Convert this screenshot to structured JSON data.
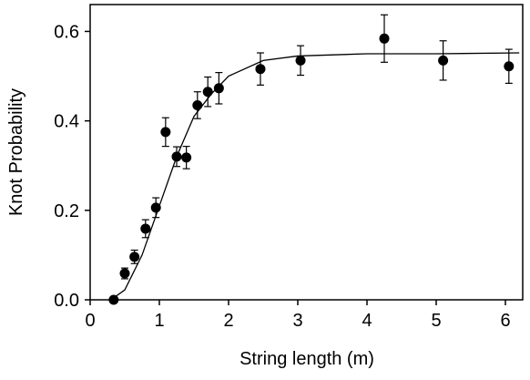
{
  "chart_data": {
    "type": "scatter",
    "xlabel": "String length (m)",
    "ylabel": "Knot Probability",
    "xlim": [
      0,
      6.25
    ],
    "ylim": [
      0,
      0.66
    ],
    "xticks": [
      0,
      1,
      2,
      3,
      4,
      5,
      6
    ],
    "yticks": [
      {
        "value": 0,
        "label": "0.0"
      },
      0.2,
      0.4,
      0.6
    ],
    "series": [
      {
        "type": "scatter",
        "color": "#000000",
        "x": [
          0.34,
          0.5,
          0.64,
          0.8,
          0.95,
          1.09,
          1.25,
          1.39,
          1.55,
          1.7,
          1.86,
          2.46,
          3.04,
          4.25,
          5.1,
          6.05
        ],
        "values": [
          0.0,
          0.059,
          0.096,
          0.159,
          0.206,
          0.375,
          0.32,
          0.318,
          0.435,
          0.465,
          0.473,
          0.516,
          0.535,
          0.584,
          0.535,
          0.522
        ],
        "errors": [
          0,
          0.012,
          0.015,
          0.02,
          0.022,
          0.032,
          0.022,
          0.025,
          0.03,
          0.033,
          0.035,
          0.036,
          0.033,
          0.053,
          0.044,
          0.038
        ]
      },
      {
        "type": "line",
        "color": "#000000",
        "x": [
          0.3,
          0.5,
          0.75,
          1,
          1.25,
          1.5,
          1.75,
          2,
          2.5,
          3,
          4,
          5,
          6.2
        ],
        "values": [
          0,
          0.022,
          0.1,
          0.21,
          0.32,
          0.41,
          0.46,
          0.5,
          0.535,
          0.545,
          0.55,
          0.55,
          0.552
        ]
      }
    ]
  }
}
